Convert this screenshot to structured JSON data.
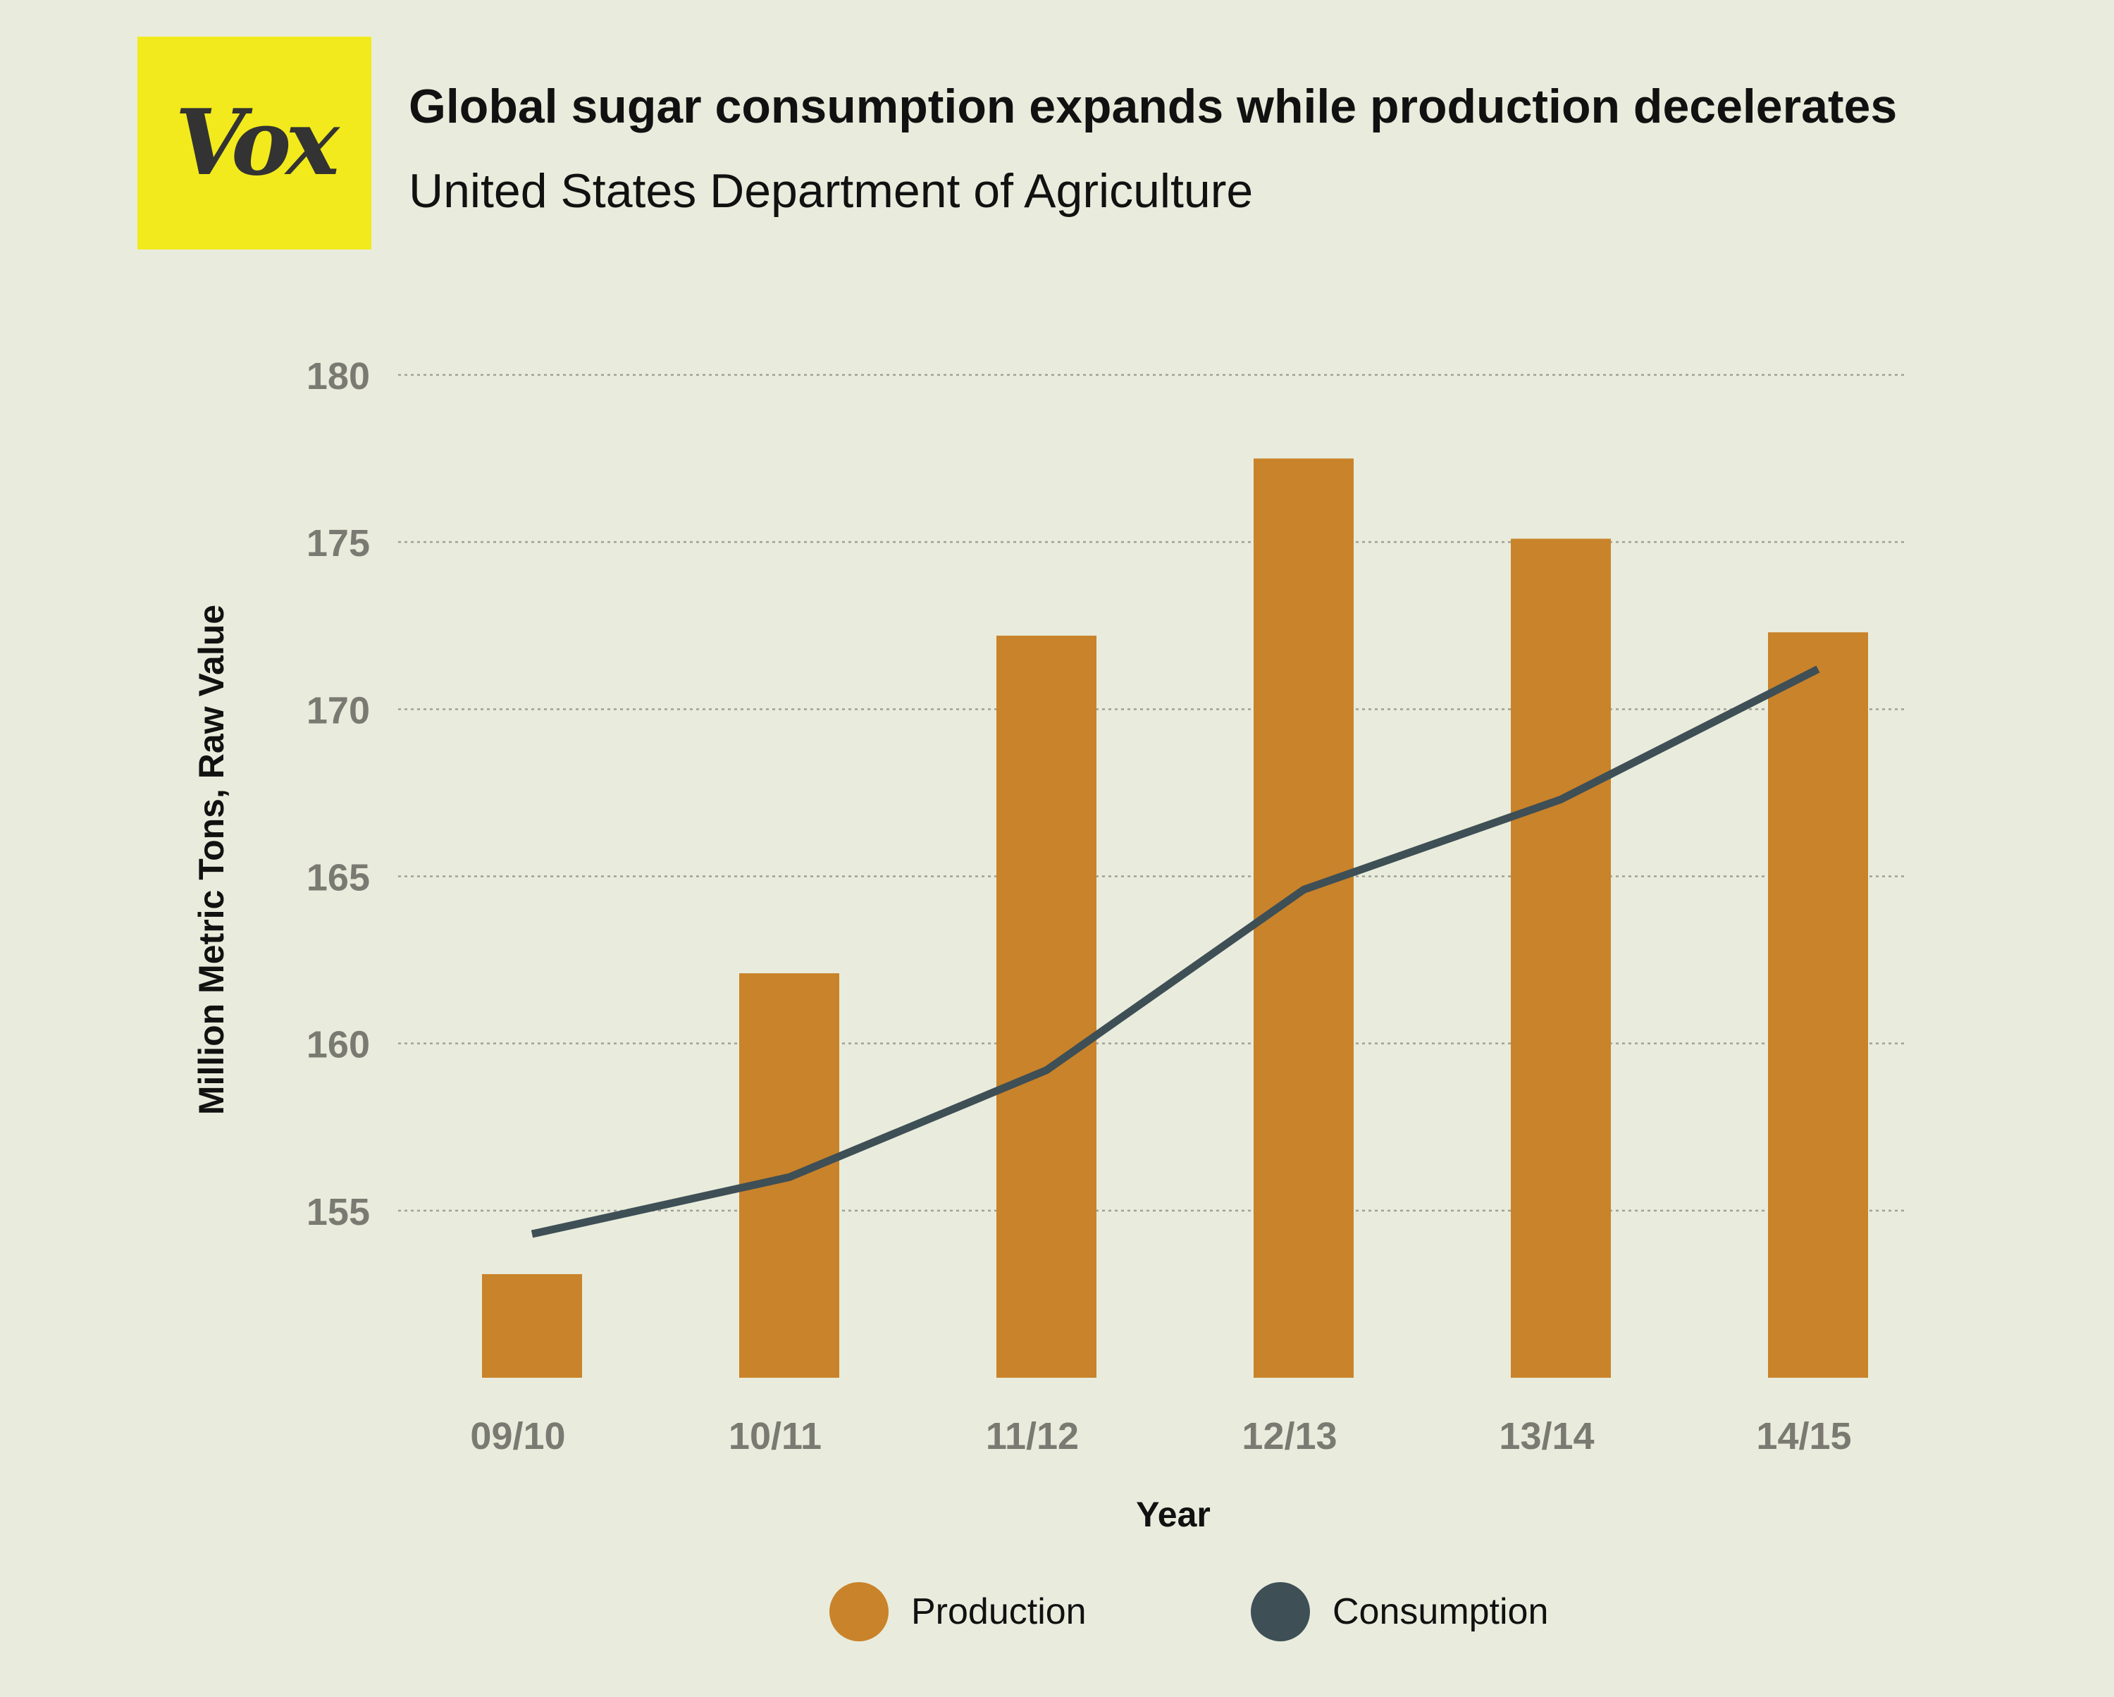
{
  "logo": {
    "text": "Vox"
  },
  "header": {
    "title": "Global sugar consumption expands while production decelerates",
    "subtitle": "United States Department of Agriculture"
  },
  "colors": {
    "production": "#c9832b",
    "consumption": "#3e4f56",
    "grid": "#a0a096",
    "tick": "#7a7a72",
    "logo_bg": "#f2ea1c"
  },
  "chart_data": {
    "type": "bar",
    "categories": [
      "09/10",
      "10/11",
      "11/12",
      "12/13",
      "13/14",
      "14/15"
    ],
    "series": [
      {
        "name": "Production",
        "type": "bar",
        "values": [
          153.1,
          162.1,
          172.2,
          177.5,
          175.1,
          172.3
        ]
      },
      {
        "name": "Consumption",
        "type": "line",
        "values": [
          154.3,
          156.0,
          159.2,
          164.6,
          167.3,
          171.2
        ]
      }
    ],
    "xlabel": "Year",
    "ylabel": "Million Metric Tons, Raw Value",
    "yticks": [
      155,
      160,
      165,
      170,
      175,
      180
    ],
    "ylim": [
      150,
      180
    ],
    "grid": true,
    "legend": "bottom"
  }
}
